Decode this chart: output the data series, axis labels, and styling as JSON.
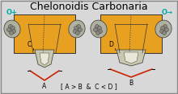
{
  "title": "Chelonoidis Carbonaria",
  "title_fontsize": 9,
  "bg_color": "#d8d8d8",
  "border_color": "#888888",
  "female_symbol": "O+",
  "male_symbol": "O→",
  "female_symbol_color": "#00aaaa",
  "male_symbol_color": "#00aaaa",
  "annotation": "[ A > B  &  C < D ]",
  "label_A": "A",
  "label_B": "B",
  "label_C": "C",
  "label_D": "D",
  "orange_color": "#E8A020",
  "dark_orange": "#C07818",
  "shell_outline": "#333333",
  "tail_color": "#c8c8b0",
  "red_color": "#cc2200",
  "white_color": "#f0f0f0",
  "label_fontsize": 5.5,
  "annotation_fontsize": 5.5
}
